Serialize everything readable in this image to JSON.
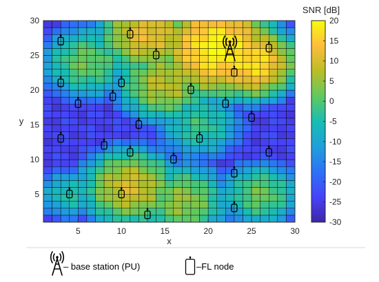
{
  "chart_data": {
    "type": "heatmap",
    "title": "",
    "xlabel": "x",
    "ylabel": "y",
    "xlim": [
      1,
      30
    ],
    "ylim": [
      1,
      30
    ],
    "x_ticks": [
      5,
      10,
      15,
      20,
      25,
      30
    ],
    "y_ticks": [
      5,
      10,
      15,
      20,
      25,
      30
    ],
    "grid_resolution": 1,
    "colorbar": {
      "label": "SNR [dB]",
      "range": [
        -30,
        20
      ],
      "ticks": [
        20,
        15,
        10,
        5,
        0,
        -5,
        -10,
        -15,
        -20,
        -25,
        -30
      ],
      "colormap": "parula"
    },
    "snr_field": {
      "baseline": -24,
      "spread": 2.0,
      "hotspots": [
        {
          "x": 21,
          "y": 26,
          "peak": 20,
          "radius": 4.5
        },
        {
          "x": 13,
          "y": 28,
          "peak": 12,
          "radius": 4
        },
        {
          "x": 25,
          "y": 24,
          "peak": 18,
          "radius": 3.5
        },
        {
          "x": 15,
          "y": 21,
          "peak": 8,
          "radius": 4
        },
        {
          "x": 6,
          "y": 24,
          "peak": 2,
          "radius": 4
        },
        {
          "x": 11,
          "y": 6,
          "peak": 10,
          "radius": 4
        },
        {
          "x": 17,
          "y": 4,
          "peak": 5,
          "radius": 4
        },
        {
          "x": 26,
          "y": 5,
          "peak": 2,
          "radius": 3.5
        },
        {
          "x": 19,
          "y": 15,
          "peak": -2,
          "radius": 4
        },
        {
          "x": 4,
          "y": 5,
          "peak": -4,
          "radius": 3
        }
      ]
    },
    "base_station": {
      "name": "base station (PU)",
      "x": 22.5,
      "y": 26
    },
    "fl_nodes": [
      {
        "x": 3,
        "y": 27
      },
      {
        "x": 11,
        "y": 28
      },
      {
        "x": 14,
        "y": 25
      },
      {
        "x": 27,
        "y": 26
      },
      {
        "x": 3,
        "y": 21
      },
      {
        "x": 10,
        "y": 21
      },
      {
        "x": 23,
        "y": 22.5
      },
      {
        "x": 18,
        "y": 20
      },
      {
        "x": 5,
        "y": 18
      },
      {
        "x": 9,
        "y": 19
      },
      {
        "x": 22,
        "y": 18
      },
      {
        "x": 12,
        "y": 15
      },
      {
        "x": 25,
        "y": 16
      },
      {
        "x": 3,
        "y": 13
      },
      {
        "x": 19,
        "y": 13
      },
      {
        "x": 8,
        "y": 12
      },
      {
        "x": 11,
        "y": 11
      },
      {
        "x": 27,
        "y": 11
      },
      {
        "x": 16,
        "y": 10
      },
      {
        "x": 23,
        "y": 8
      },
      {
        "x": 4,
        "y": 5
      },
      {
        "x": 10,
        "y": 5
      },
      {
        "x": 23,
        "y": 3
      },
      {
        "x": 13,
        "y": 2
      }
    ]
  },
  "legend": {
    "base_station_label": "– base station (PU)",
    "fl_node_label": "–FL node"
  },
  "colors": {
    "cell_border": "#000000",
    "parula": [
      "#3e26a8",
      "#4743f8",
      "#2c72f7",
      "#1fa0db",
      "#19bdb2",
      "#60c960",
      "#bbbd26",
      "#fdbd3c",
      "#f9fb0e"
    ]
  }
}
